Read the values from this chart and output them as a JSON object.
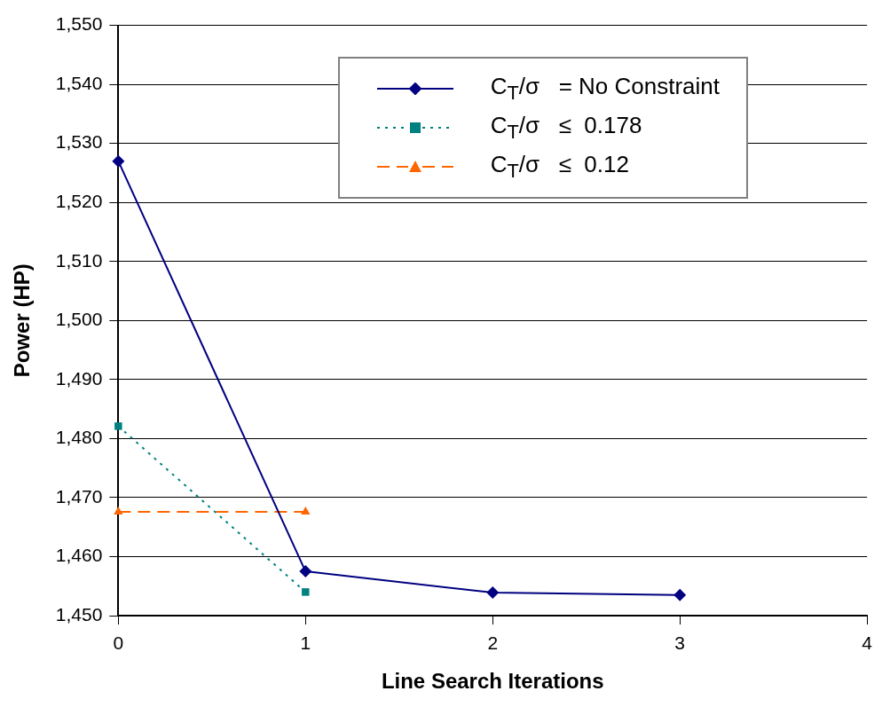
{
  "chart_data": {
    "type": "line",
    "xlabel": "Line Search Iterations",
    "ylabel": "Power (HP)",
    "x": [
      0,
      1,
      2,
      3
    ],
    "series": [
      {
        "name": "C$_{T}$/σ   = No Constraint",
        "color": "#000080",
        "values": [
          1527,
          1457.5,
          1453.9,
          1453.5
        ],
        "marker": "diamond",
        "line_style": "solid"
      },
      {
        "name": "C$_{T}$/σ   ≤  0.178",
        "color": "#008080",
        "values": [
          1482.1,
          1454.0,
          null,
          null
        ],
        "marker": "square",
        "line_style": "dotted"
      },
      {
        "name": "C$_{T}$/σ   ≤  0.12",
        "color": "#ff6600",
        "values": [
          1467.6,
          1467.6,
          null,
          null
        ],
        "marker": "triangle",
        "line_style": "dashed"
      }
    ],
    "xlim": [
      0,
      4
    ],
    "xticks": [
      0,
      1,
      2,
      3,
      4
    ],
    "ylim": [
      1450,
      1550
    ],
    "yticks": [
      {
        "value": 1450,
        "label": "1,450"
      },
      {
        "value": 1460,
        "label": "1,460"
      },
      {
        "value": 1470,
        "label": "1,470"
      },
      {
        "value": 1480,
        "label": "1,480"
      },
      {
        "value": 1490,
        "label": "1,490"
      },
      {
        "value": 1500,
        "label": "1,500"
      },
      {
        "value": 1510,
        "label": "1,510"
      },
      {
        "value": 1520,
        "label": "1,520"
      },
      {
        "value": 1530,
        "label": "1,530"
      },
      {
        "value": 1540,
        "label": "1,540"
      },
      {
        "value": 1550,
        "label": "1,550"
      }
    ],
    "grid": "y",
    "legend": "top right"
  }
}
